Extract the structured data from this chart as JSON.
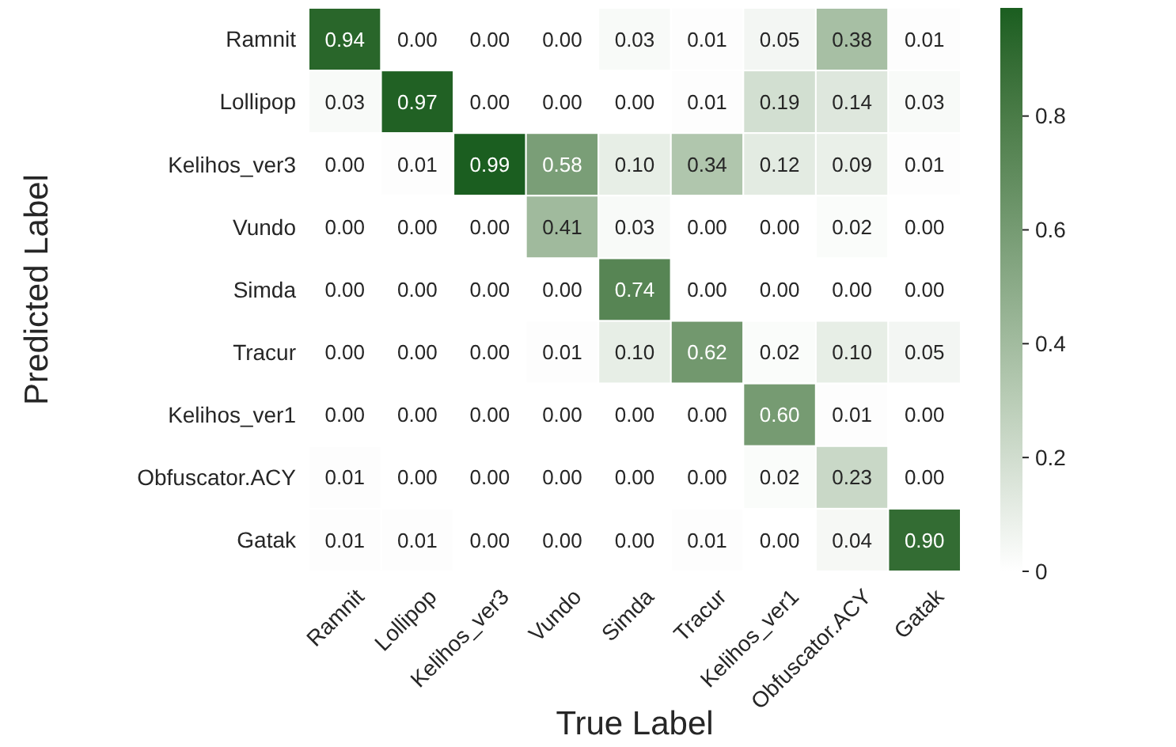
{
  "chart_data": {
    "type": "heatmap",
    "xlabel": "True Label",
    "ylabel": "Predicted Label",
    "categories": [
      "Ramnit",
      "Lollipop",
      "Kelihos_ver3",
      "Vundo",
      "Simda",
      "Tracur",
      "Kelihos_ver1",
      "Obfuscator.ACY",
      "Gatak"
    ],
    "y_categories": [
      "Ramnit",
      "Lollipop",
      "Kelihos_ver3",
      "Vundo",
      "Simda",
      "Tracur",
      "Kelihos_ver1",
      "Obfuscator.ACY",
      "Gatak"
    ],
    "cells": [
      [
        0.94,
        0,
        0,
        0,
        0.03,
        0.01,
        0.05,
        0.38,
        0.01
      ],
      [
        0.03,
        0.97,
        0,
        0,
        0,
        0.01,
        0.19,
        0.14,
        0.03
      ],
      [
        0,
        0.01,
        0.99,
        0.58,
        0.1,
        0.34,
        0.12,
        0.09,
        0.01
      ],
      [
        0,
        0,
        0,
        0.41,
        0.03,
        0,
        0,
        0.02,
        0
      ],
      [
        0,
        0,
        0,
        0,
        0.74,
        0,
        0,
        0,
        0
      ],
      [
        0,
        0,
        0,
        0.01,
        0.1,
        0.62,
        0.02,
        0.1,
        0.05
      ],
      [
        0,
        0,
        0,
        0,
        0,
        0,
        0.6,
        0.01,
        0
      ],
      [
        0.01,
        0,
        0,
        0,
        0,
        0,
        0.02,
        0.23,
        0
      ],
      [
        0.01,
        0.01,
        0,
        0,
        0,
        0.01,
        0,
        0.04,
        0.9
      ]
    ],
    "cell_labels": [
      [
        "0.94",
        "0.00",
        "0.00",
        "0.00",
        "0.03",
        "0.01",
        "0.05",
        "0.38",
        "0.01"
      ],
      [
        "0.03",
        "0.97",
        "0.00",
        "0.00",
        "0.00",
        "0.01",
        "0.19",
        "0.14",
        "0.03"
      ],
      [
        "0.00",
        "0.01",
        "0.99",
        "0.58",
        "0.10",
        "0.34",
        "0.12",
        "0.09",
        "0.01"
      ],
      [
        "0.00",
        "0.00",
        "0.00",
        "0.41",
        "0.03",
        "0.00",
        "0.00",
        "0.02",
        "0.00"
      ],
      [
        "0.00",
        "0.00",
        "0.00",
        "0.00",
        "0.74",
        "0.00",
        "0.00",
        "0.00",
        "0.00"
      ],
      [
        "0.00",
        "0.00",
        "0.00",
        "0.01",
        "0.10",
        "0.62",
        "0.02",
        "0.10",
        "0.05"
      ],
      [
        "0.00",
        "0.00",
        "0.00",
        "0.00",
        "0.00",
        "0.00",
        "0.60",
        "0.01",
        "0.00"
      ],
      [
        "0.01",
        "0.00",
        "0.00",
        "0.00",
        "0.00",
        "0.00",
        "0.02",
        "0.23",
        "0.00"
      ],
      [
        "0.01",
        "0.01",
        "0.00",
        "0.00",
        "0.00",
        "0.01",
        "0.00",
        "0.04",
        "0.90"
      ]
    ],
    "clim": [
      0,
      0.99
    ],
    "cticks": [
      0,
      0.2,
      0.4,
      0.6,
      0.8
    ]
  }
}
